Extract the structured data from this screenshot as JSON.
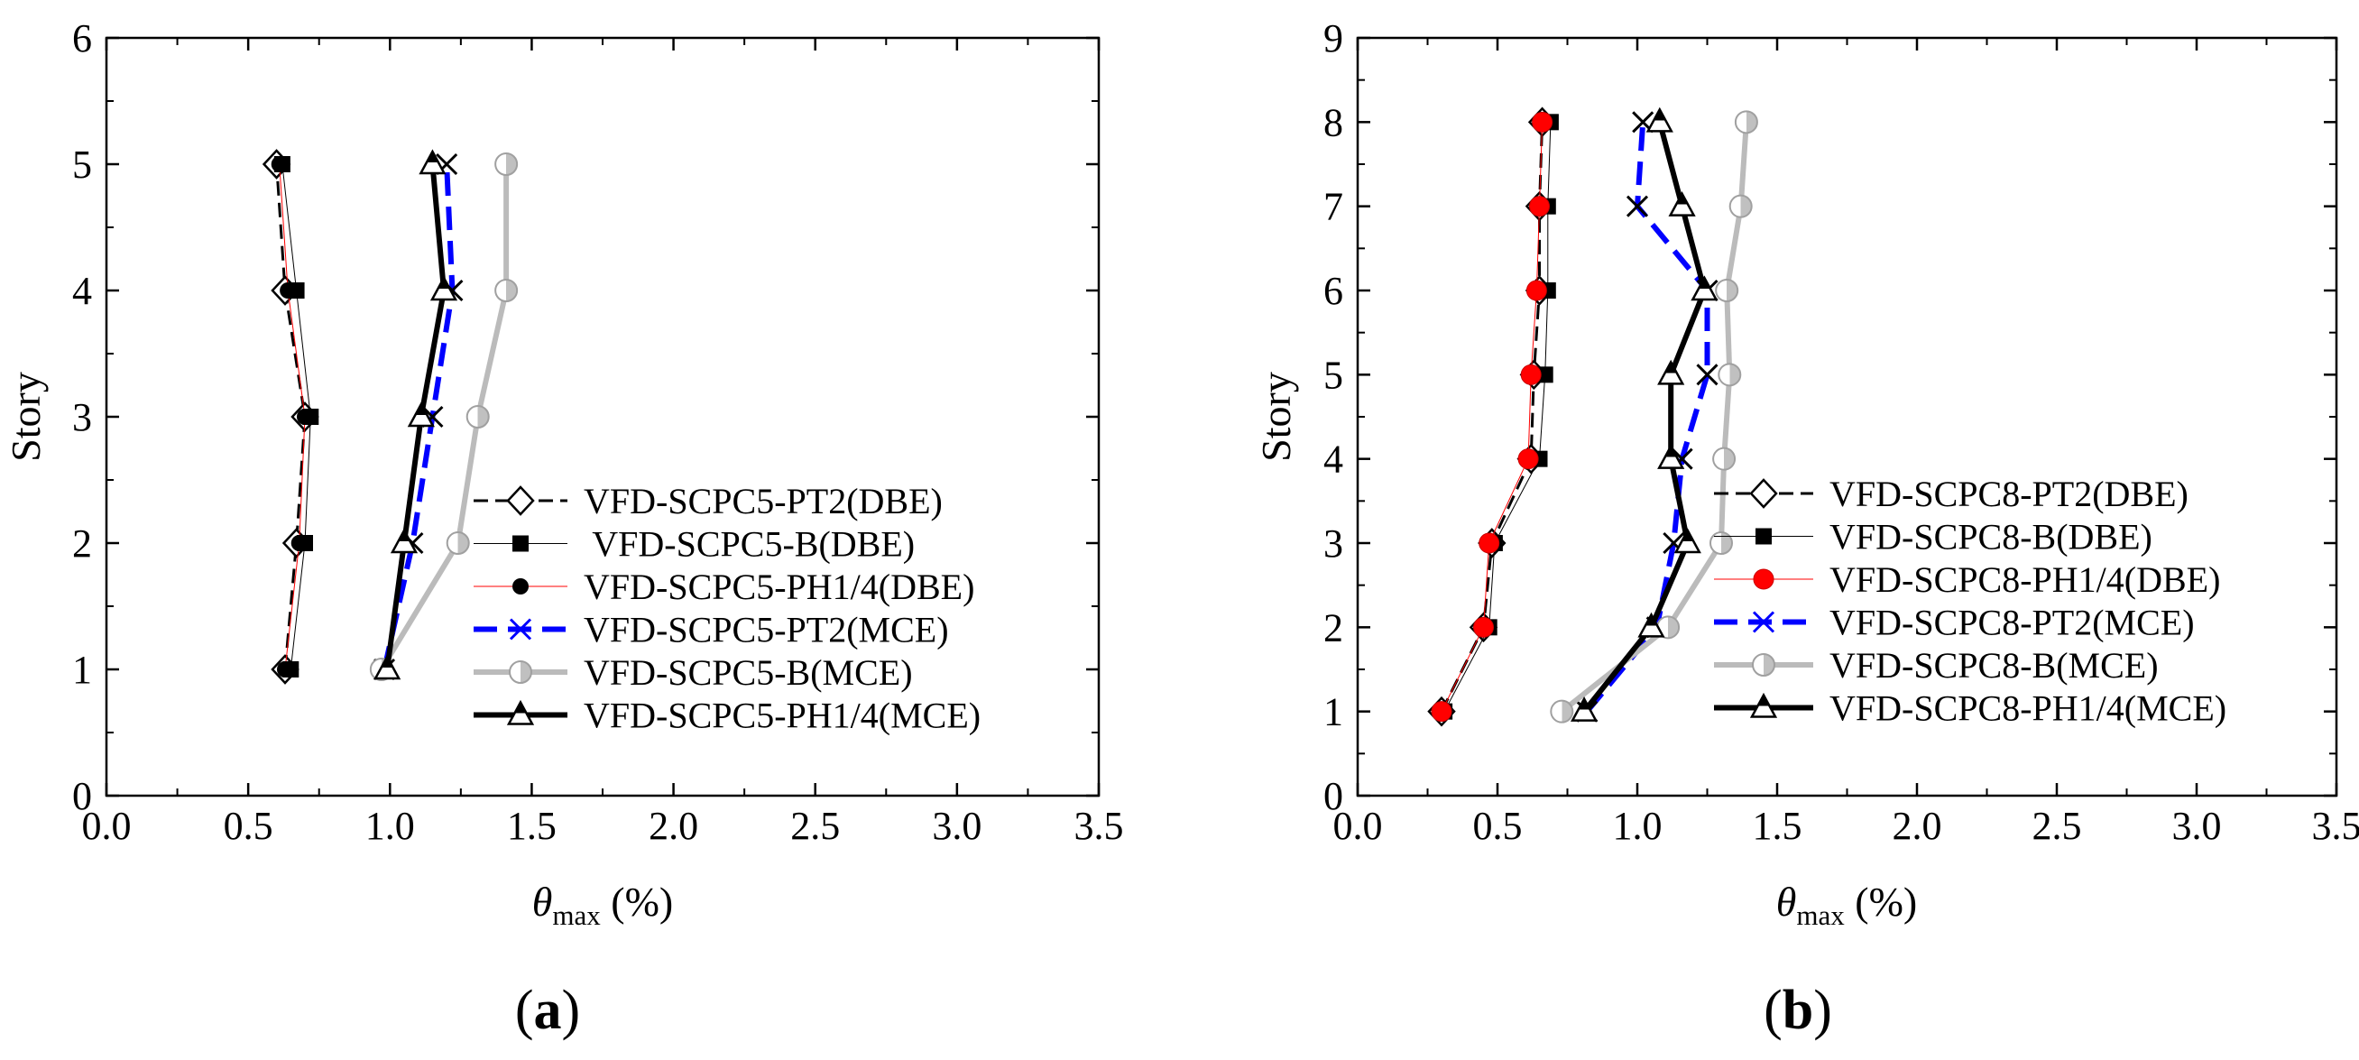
{
  "chart_data": [
    {
      "type": "line",
      "panel_label_open": "(",
      "panel_label_letter": "a",
      "panel_label_close": ")",
      "xlabel_symbol": "θ",
      "xlabel_sub": "max",
      "xlabel_unit": " (%)",
      "ylabel": "Story",
      "xlim": [
        0,
        3.5
      ],
      "ylim": [
        0,
        6
      ],
      "xticks": [
        "0.0",
        "0.5",
        "1.0",
        "1.5",
        "2.0",
        "2.5",
        "3.0",
        "3.5"
      ],
      "yticks": [
        "0",
        "1",
        "2",
        "3",
        "4",
        "5",
        "6"
      ],
      "legend_position": "bottom-right",
      "series": [
        {
          "name": "VFD-SCPC5-PT2(DBE)",
          "x": [
            0.63,
            0.67,
            0.7,
            0.63,
            0.6
          ],
          "y": [
            1,
            2,
            3,
            4,
            5
          ],
          "color": "#000000",
          "line_style": "dash",
          "line_width": 3,
          "marker": "diamond-open"
        },
        {
          "name": " VFD-SCPC5-B(DBE)",
          "x": [
            0.65,
            0.7,
            0.72,
            0.67,
            0.62
          ],
          "y": [
            1,
            2,
            3,
            4,
            5
          ],
          "color": "#000000",
          "line_style": "solid",
          "line_width": 1,
          "marker": "square-filled"
        },
        {
          "name": "VFD-SCPC5-PH1/4(DBE)",
          "x": [
            0.63,
            0.68,
            0.7,
            0.64,
            0.61
          ],
          "y": [
            1,
            2,
            3,
            4,
            5
          ],
          "color": "#ff0000",
          "line_style": "solid",
          "line_width": 1,
          "marker": "circle-filled-black"
        },
        {
          "name": "VFD-SCPC5-PT2(MCE)",
          "x": [
            0.98,
            1.08,
            1.15,
            1.22,
            1.2
          ],
          "y": [
            1,
            2,
            3,
            4,
            5
          ],
          "color": "#0000ff",
          "line_style": "dash",
          "line_width": 6,
          "marker": "cross"
        },
        {
          "name": "VFD-SCPC5-B(MCE)",
          "x": [
            0.97,
            1.24,
            1.31,
            1.41,
            1.41
          ],
          "y": [
            1,
            2,
            3,
            4,
            5
          ],
          "color": "#bbbbbb",
          "line_style": "solid",
          "line_width": 6,
          "marker": "circle-half"
        },
        {
          "name": "VFD-SCPC5-PH1/4(MCE)",
          "x": [
            0.99,
            1.05,
            1.11,
            1.19,
            1.15
          ],
          "y": [
            1,
            2,
            3,
            4,
            5
          ],
          "color": "#000000",
          "line_style": "solid",
          "line_width": 6,
          "marker": "triangle-half"
        }
      ]
    },
    {
      "type": "line",
      "panel_label_open": "(",
      "panel_label_letter": "b",
      "panel_label_close": ")",
      "xlabel_symbol": "θ",
      "xlabel_sub": "max",
      "xlabel_unit": " (%)",
      "ylabel": "Story",
      "xlim": [
        0,
        3.5
      ],
      "ylim": [
        0,
        9
      ],
      "xticks": [
        "0.0",
        "0.5",
        "1.0",
        "1.5",
        "2.0",
        "2.5",
        "3.0",
        "3.5"
      ],
      "yticks": [
        "0",
        "1",
        "2",
        "3",
        "4",
        "5",
        "6",
        "7",
        "8",
        "9"
      ],
      "legend_position": "bottom-right",
      "series": [
        {
          "name": "VFD-SCPC8-PT2(DBE)",
          "x": [
            0.3,
            0.45,
            0.48,
            0.62,
            0.63,
            0.65,
            0.65,
            0.66
          ],
          "y": [
            1,
            2,
            3,
            4,
            5,
            6,
            7,
            8
          ],
          "color": "#000000",
          "line_style": "dash",
          "line_width": 3,
          "marker": "diamond-open"
        },
        {
          "name": "VFD-SCPC8-B(DBE)",
          "x": [
            0.31,
            0.47,
            0.49,
            0.65,
            0.67,
            0.68,
            0.68,
            0.69
          ],
          "y": [
            1,
            2,
            3,
            4,
            5,
            6,
            7,
            8
          ],
          "color": "#000000",
          "line_style": "solid",
          "line_width": 1,
          "marker": "square-filled"
        },
        {
          "name": "VFD-SCPC8-PH1/4(DBE)",
          "x": [
            0.3,
            0.45,
            0.47,
            0.61,
            0.62,
            0.64,
            0.65,
            0.66
          ],
          "y": [
            1,
            2,
            3,
            4,
            5,
            6,
            7,
            8
          ],
          "color": "#ff0000",
          "line_style": "solid",
          "line_width": 1,
          "marker": "circle-filled-red"
        },
        {
          "name": "VFD-SCPC8-PT2(MCE)",
          "x": [
            0.82,
            1.07,
            1.13,
            1.16,
            1.25,
            1.25,
            1.0,
            1.02
          ],
          "y": [
            1,
            2,
            3,
            4,
            5,
            6,
            7,
            8
          ],
          "color": "#0000ff",
          "line_style": "dash",
          "line_width": 6,
          "marker": "cross"
        },
        {
          "name": "VFD-SCPC8-B(MCE)",
          "x": [
            0.73,
            1.11,
            1.3,
            1.31,
            1.33,
            1.32,
            1.37,
            1.39
          ],
          "y": [
            1,
            2,
            3,
            4,
            5,
            6,
            7,
            8
          ],
          "color": "#bbbbbb",
          "line_style": "solid",
          "line_width": 6,
          "marker": "circle-half"
        },
        {
          "name": "VFD-SCPC8-PH1/4(MCE)",
          "x": [
            0.81,
            1.05,
            1.18,
            1.12,
            1.12,
            1.24,
            1.16,
            1.08
          ],
          "y": [
            1,
            2,
            3,
            4,
            5,
            6,
            7,
            8
          ],
          "color": "#000000",
          "line_style": "solid",
          "line_width": 6,
          "marker": "triangle-half"
        }
      ]
    }
  ]
}
